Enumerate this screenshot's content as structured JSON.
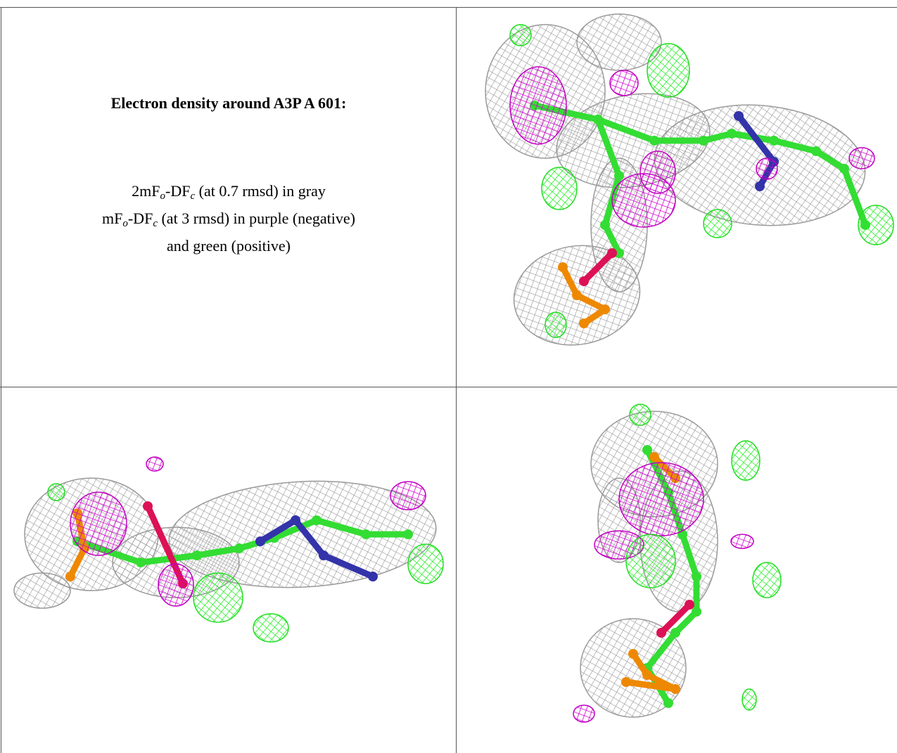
{
  "table": {
    "title": "Electron density around A3P A 601:",
    "legend": [
      [
        "2mF",
        "o",
        "-DF",
        "c",
        " (at 0.7 rmsd) in gray"
      ],
      [
        "mF",
        "o",
        "-DF",
        "c",
        " (at 3 rmsd) in purple (negative)"
      ],
      [
        "and green (positive)"
      ]
    ]
  }
}
